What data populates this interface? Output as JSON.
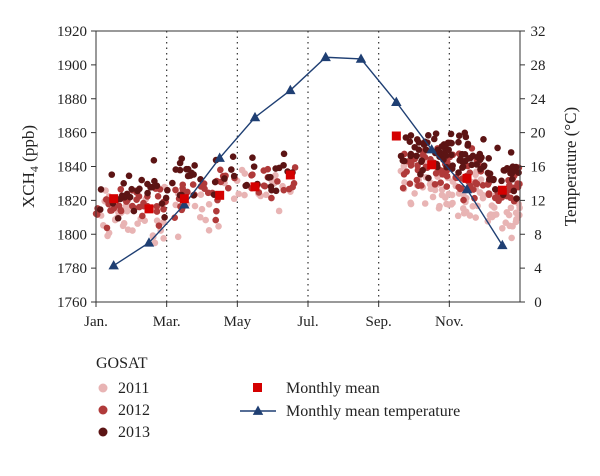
{
  "chart_data": {
    "type": "scatter",
    "title": "",
    "xlabel": "",
    "ylabel": "XCH",
    "ylabel_sub": "4",
    "ylabel_unit": " (ppb)",
    "y2label": "Temperature (°C)",
    "x_ticks": [
      "Jan.",
      "Mar.",
      "May",
      "Jul.",
      "Sep.",
      "Nov."
    ],
    "x_range_months": [
      1,
      13
    ],
    "ylim": [
      1760,
      1920
    ],
    "y_ticks": [
      1760,
      1780,
      1800,
      1820,
      1840,
      1860,
      1880,
      1900,
      1920
    ],
    "y2lim": [
      0,
      32
    ],
    "y2_ticks": [
      0,
      4,
      8,
      12,
      16,
      20,
      24,
      28,
      32
    ],
    "grid": "dotted vertical",
    "legend": {
      "title": "GOSAT",
      "placement": "bottom",
      "items": [
        "2011",
        "2012",
        "2013"
      ],
      "mean_label": "Monthly mean",
      "temp_label": "Monthly mean temperature"
    },
    "colors": {
      "s2011": "#e8b4b4",
      "s2012": "#b03a3a",
      "s2013": "#5c1414",
      "mean": "#d40000",
      "temp": "#1f3f73"
    },
    "monthly_mean": {
      "x": [
        1.5,
        2.5,
        3.5,
        4.5,
        5.5,
        6.5,
        9.5,
        10.5,
        11.5,
        12.5
      ],
      "values": [
        1821,
        1815,
        1821,
        1823,
        1828,
        1835,
        1858,
        1841,
        1833,
        1826
      ]
    },
    "temperature": {
      "x": [
        1.5,
        2.5,
        3.5,
        4.5,
        5.5,
        6.5,
        7.5,
        8.5,
        9.5,
        10.5,
        11.5,
        12.5
      ],
      "values": [
        4.3,
        7.0,
        11.5,
        17.0,
        21.8,
        25.0,
        28.9,
        28.7,
        23.6,
        18.0,
        13.3,
        6.7
      ]
    },
    "series": [
      {
        "name": "2011",
        "clusters": [
          {
            "x": [
              1.0,
              2.3
            ],
            "center": 1810,
            "spread": 16,
            "count": 26
          },
          {
            "x": [
              2.3,
              3.2
            ],
            "center": 1808,
            "spread": 18,
            "count": 14
          },
          {
            "x": [
              3.2,
              4.5
            ],
            "center": 1814,
            "spread": 14,
            "count": 16
          },
          {
            "x": [
              4.5,
              6.7
            ],
            "center": 1826,
            "spread": 12,
            "count": 16
          },
          {
            "x": [
              9.6,
              10.7
            ],
            "center": 1830,
            "spread": 12,
            "count": 22
          },
          {
            "x": [
              10.7,
              12.0
            ],
            "center": 1824,
            "spread": 14,
            "count": 40
          },
          {
            "x": [
              12.0,
              13.0
            ],
            "center": 1810,
            "spread": 14,
            "count": 28
          }
        ]
      },
      {
        "name": "2012",
        "clusters": [
          {
            "x": [
              1.0,
              2.3
            ],
            "center": 1818,
            "spread": 12,
            "count": 24
          },
          {
            "x": [
              2.3,
              3.2
            ],
            "center": 1820,
            "spread": 12,
            "count": 14
          },
          {
            "x": [
              3.2,
              4.5
            ],
            "center": 1824,
            "spread": 14,
            "count": 22
          },
          {
            "x": [
              4.5,
              6.7
            ],
            "center": 1830,
            "spread": 10,
            "count": 24
          },
          {
            "x": [
              9.6,
              10.7
            ],
            "center": 1840,
            "spread": 14,
            "count": 30
          },
          {
            "x": [
              10.7,
              12.0
            ],
            "center": 1838,
            "spread": 14,
            "count": 44
          },
          {
            "x": [
              12.0,
              13.0
            ],
            "center": 1828,
            "spread": 12,
            "count": 28
          }
        ]
      },
      {
        "name": "2013",
        "clusters": [
          {
            "x": [
              1.0,
              2.3
            ],
            "center": 1822,
            "spread": 14,
            "count": 18
          },
          {
            "x": [
              2.3,
              3.2
            ],
            "center": 1828,
            "spread": 16,
            "count": 12
          },
          {
            "x": [
              3.2,
              4.5
            ],
            "center": 1836,
            "spread": 12,
            "count": 18
          },
          {
            "x": [
              4.5,
              6.7
            ],
            "center": 1836,
            "spread": 10,
            "count": 20
          },
          {
            "x": [
              9.6,
              10.7
            ],
            "center": 1850,
            "spread": 16,
            "count": 30
          },
          {
            "x": [
              10.7,
              12.0
            ],
            "center": 1846,
            "spread": 12,
            "count": 46
          },
          {
            "x": [
              12.0,
              13.0
            ],
            "center": 1836,
            "spread": 14,
            "count": 24
          }
        ]
      }
    ]
  }
}
